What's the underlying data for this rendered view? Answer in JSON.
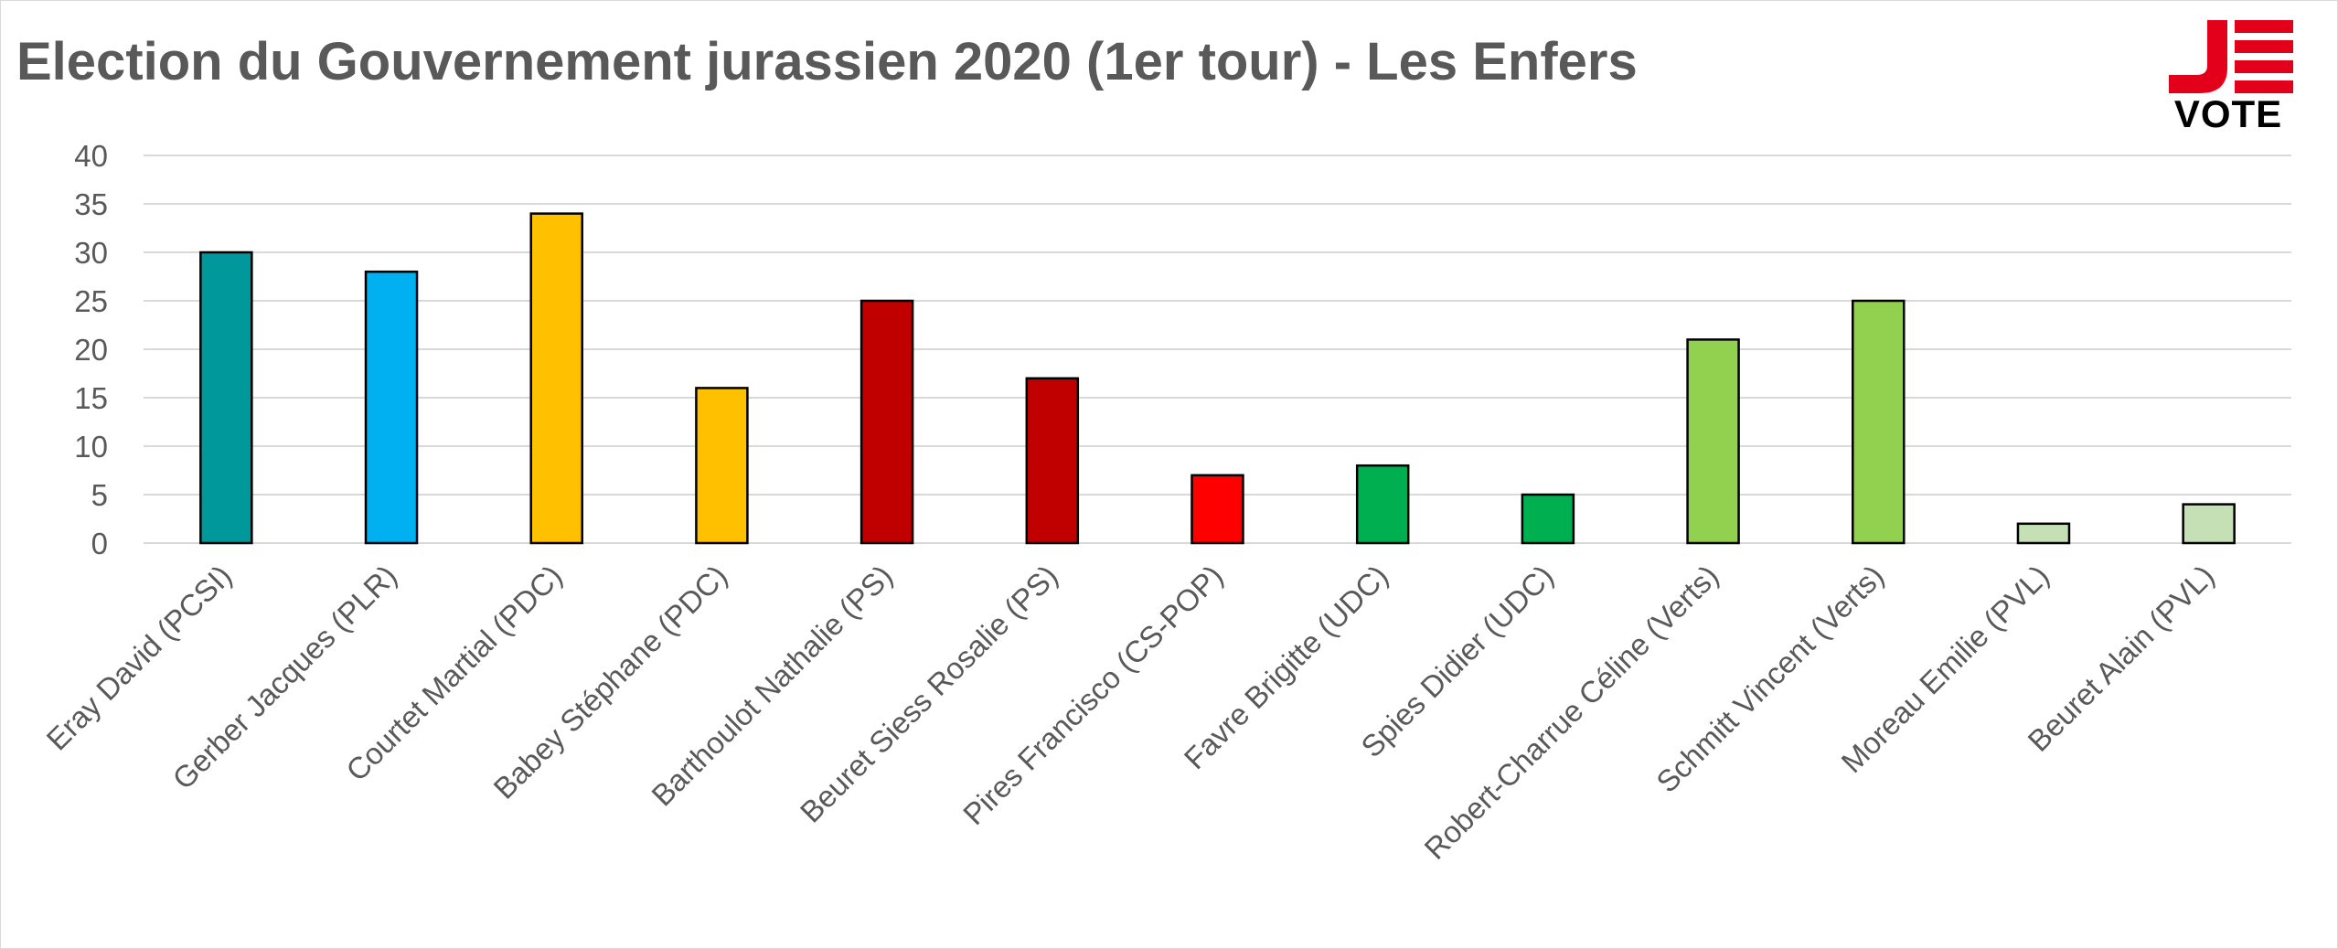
{
  "title": "Election du Gouvernement jurassien 2020 (1er tour) - Les Enfers",
  "logo": {
    "mark": "JE",
    "text": "VOTE",
    "accent": "#e3001b"
  },
  "chart_data": {
    "type": "bar",
    "title": "Election du Gouvernement jurassien 2020 (1er tour) - Les Enfers",
    "xlabel": "",
    "ylabel": "",
    "ylim": [
      0,
      40
    ],
    "yticks": [
      0,
      5,
      10,
      15,
      20,
      25,
      30,
      35,
      40
    ],
    "grid": true,
    "legend": "none",
    "categories": [
      "Eray David (PCSI)",
      "Gerber Jacques (PLR)",
      "Courtet Martial (PDC)",
      "Babey Stéphane (PDC)",
      "Barthoulot Nathalie (PS)",
      "Beuret Siess Rosalie (PS)",
      "Pires Francisco (CS-POP)",
      "Favre Brigitte (UDC)",
      "Spies Didier (UDC)",
      "Robert-Charrue Céline (Verts)",
      "Schmitt Vincent (Verts)",
      "Moreau Emilie (PVL)",
      "Beuret Alain (PVL)"
    ],
    "values": [
      30,
      28,
      34,
      16,
      25,
      17,
      7,
      8,
      5,
      21,
      25,
      2,
      4
    ],
    "colors": [
      "#00989a",
      "#00b0f0",
      "#ffc000",
      "#ffc000",
      "#c00000",
      "#c00000",
      "#ff0000",
      "#00b050",
      "#00b050",
      "#92d050",
      "#92d050",
      "#c5e0b4",
      "#c5e0b4"
    ]
  }
}
